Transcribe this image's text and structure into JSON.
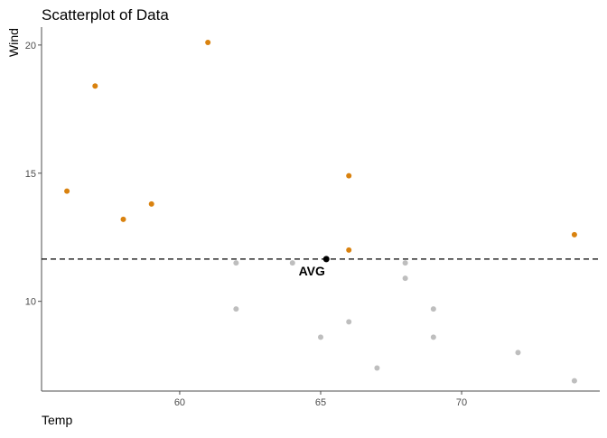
{
  "chart_data": {
    "type": "scatter",
    "title": "Scatterplot of Data",
    "xlabel": "Temp",
    "ylabel": "Wind",
    "xlim": [
      55.1,
      74.9
    ],
    "ylim": [
      6.5,
      20.7
    ],
    "x_ticks": [
      60,
      65,
      70
    ],
    "y_ticks": [
      10,
      15,
      20
    ],
    "grid": false,
    "colors": {
      "above": "#d9820f",
      "below": "#bebebe",
      "avg_point": "#000000",
      "avg_line": "#000000",
      "axis": "#4d4d4d"
    },
    "series": [
      {
        "points": [
          {
            "x": 56,
            "y": 14.3
          },
          {
            "x": 57,
            "y": 18.4
          },
          {
            "x": 58,
            "y": 13.2
          },
          {
            "x": 59,
            "y": 13.8
          },
          {
            "x": 61,
            "y": 20.1
          },
          {
            "x": 66,
            "y": 14.9
          },
          {
            "x": 66,
            "y": 12.0
          },
          {
            "x": 74,
            "y": 12.6
          }
        ],
        "color": "#d9820f"
      },
      {
        "points": [
          {
            "x": 62,
            "y": 11.5
          },
          {
            "x": 62,
            "y": 9.7
          },
          {
            "x": 64,
            "y": 11.5
          },
          {
            "x": 65,
            "y": 8.6
          },
          {
            "x": 66,
            "y": 9.2
          },
          {
            "x": 67,
            "y": 7.4
          },
          {
            "x": 68,
            "y": 11.5
          },
          {
            "x": 68,
            "y": 10.9
          },
          {
            "x": 69,
            "y": 9.7
          },
          {
            "x": 69,
            "y": 8.6
          },
          {
            "x": 72,
            "y": 8.0
          },
          {
            "x": 74,
            "y": 6.9
          }
        ],
        "color": "#bebebe"
      }
    ],
    "average": {
      "x": 65.2,
      "y": 11.65,
      "label": "AVG"
    }
  }
}
